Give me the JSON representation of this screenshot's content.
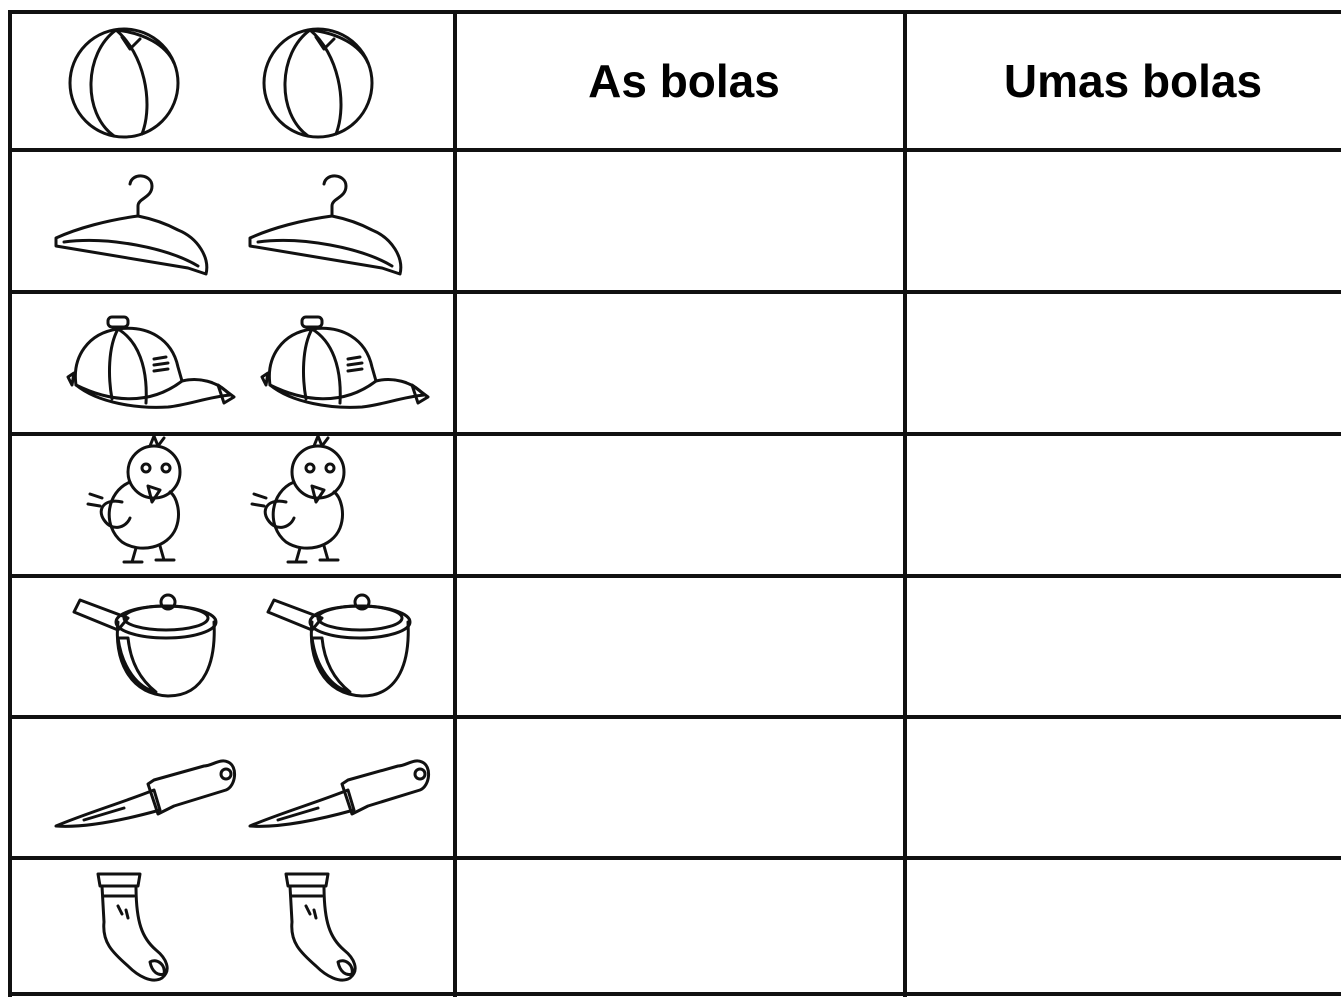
{
  "table": {
    "headers": [
      "As bolas",
      "Umas bolas"
    ]
  }
}
